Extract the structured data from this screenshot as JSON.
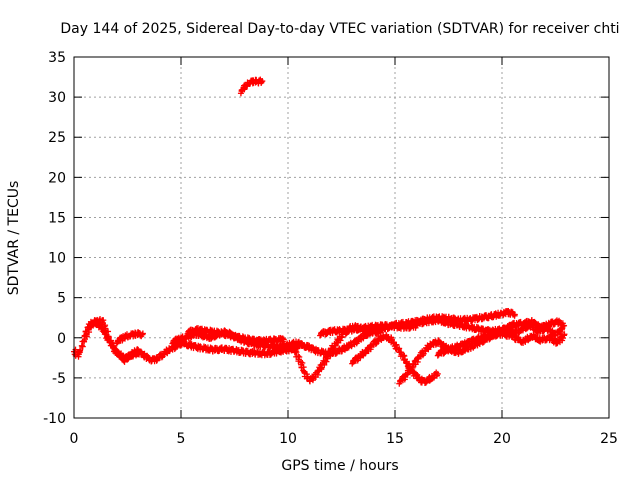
{
  "chart_data": {
    "type": "scatter",
    "title": "Day 144 of 2025, Sidereal Day-to-day VTEC variation (SDTVAR) for receiver chti",
    "xlabel": "GPS time / hours",
    "ylabel": "SDTVAR / TECUs",
    "xlim": [
      0,
      25
    ],
    "ylim": [
      -10,
      35
    ],
    "xticks": [
      0,
      5,
      10,
      15,
      20,
      25
    ],
    "yticks": [
      -10,
      -5,
      0,
      5,
      10,
      15,
      20,
      25,
      30,
      35
    ],
    "grid": true,
    "marker": "plus",
    "color": "#ff0000",
    "series": [
      {
        "name": "s1",
        "x": [
          0.0,
          0.1,
          0.2,
          0.3,
          0.45,
          0.6,
          0.75,
          0.9,
          1.05,
          1.2,
          1.4,
          1.6,
          1.8,
          2.0,
          2.3,
          2.6,
          3.0
        ],
        "y": [
          -1.5,
          -2.0,
          -2.2,
          -1.6,
          -0.5,
          0.5,
          1.3,
          1.8,
          2.0,
          1.5,
          0.8,
          -0.2,
          -1.0,
          -1.8,
          -2.5,
          -2.3,
          -1.9
        ]
      },
      {
        "name": "s2",
        "x": [
          0.5,
          0.7,
          0.9,
          1.1,
          1.3,
          1.5,
          1.7,
          1.9,
          2.1,
          2.4,
          2.7,
          3.0
        ],
        "y": [
          0.5,
          1.5,
          2.0,
          1.9,
          2.2,
          1.0,
          -0.5,
          -1.5,
          -2.2,
          -2.8,
          -2.0,
          -1.5
        ]
      },
      {
        "name": "s3",
        "x": [
          2.0,
          2.3,
          2.6,
          2.9,
          3.2
        ],
        "y": [
          -0.5,
          0.0,
          0.3,
          0.5,
          0.4
        ]
      },
      {
        "name": "s4",
        "x": [
          3.0,
          3.3,
          3.6,
          3.9,
          4.2,
          4.5,
          4.8,
          5.1
        ],
        "y": [
          -1.8,
          -2.2,
          -2.8,
          -2.6,
          -2.0,
          -1.4,
          -1.0,
          -0.6
        ]
      },
      {
        "name": "s5",
        "x": [
          4.6,
          4.9,
          5.2,
          5.5,
          5.8,
          6.1,
          6.4,
          6.7,
          7.0,
          7.3,
          7.6,
          8.0,
          8.5,
          9.0,
          9.5,
          10.0,
          10.5
        ],
        "y": [
          -0.5,
          -0.2,
          0.0,
          0.3,
          0.5,
          0.2,
          0.0,
          0.4,
          0.7,
          0.5,
          0.0,
          -0.5,
          -0.8,
          -1.0,
          -1.1,
          -0.9,
          -0.6
        ]
      },
      {
        "name": "s6",
        "x": [
          5.0,
          5.5,
          6.0,
          6.5,
          7.0,
          7.5,
          8.0,
          8.5,
          9.0,
          9.5,
          10.0,
          10.5
        ],
        "y": [
          -0.6,
          -1.0,
          -1.3,
          -1.5,
          -1.4,
          -1.6,
          -1.8,
          -1.9,
          -2.0,
          -1.7,
          -1.5,
          -1.0
        ]
      },
      {
        "name": "s7",
        "x": [
          5.3,
          5.8,
          6.3,
          6.8,
          7.3,
          7.8,
          8.3,
          8.8,
          9.3,
          9.8
        ],
        "y": [
          0.7,
          1.0,
          0.8,
          0.6,
          0.3,
          0.0,
          -0.3,
          -0.4,
          -0.3,
          -0.2
        ]
      },
      {
        "name": "s8",
        "x": [
          7.8,
          8.0,
          8.2,
          8.4,
          8.6,
          8.8
        ],
        "y": [
          30.7,
          31.3,
          31.8,
          32.0,
          31.9,
          32.0
        ]
      },
      {
        "name": "s9",
        "x": [
          10.2,
          10.4,
          10.6,
          10.8,
          11.0,
          11.2,
          11.4,
          11.6,
          11.8,
          12.0,
          12.3,
          12.6,
          12.9,
          13.2,
          13.5,
          13.8,
          14.1,
          14.4
        ],
        "y": [
          -1.0,
          -2.0,
          -3.2,
          -4.5,
          -5.3,
          -5.0,
          -4.2,
          -3.5,
          -2.6,
          -1.6,
          -0.5,
          0.5,
          1.2,
          1.4,
          1.0,
          0.8,
          0.7,
          0.9
        ]
      },
      {
        "name": "s10",
        "x": [
          10.5,
          11.0,
          11.5,
          12.0,
          12.5,
          13.0,
          13.5,
          14.0,
          14.5,
          15.0,
          15.5,
          16.0,
          16.5,
          17.0,
          17.5,
          18.0,
          18.5,
          19.0,
          19.5,
          20.0,
          20.3,
          20.6
        ],
        "y": [
          -0.8,
          -1.2,
          -1.8,
          -2.0,
          -1.5,
          -0.8,
          0.2,
          0.8,
          1.2,
          1.6,
          1.8,
          2.0,
          2.3,
          2.5,
          2.4,
          2.2,
          2.3,
          2.5,
          2.7,
          3.0,
          3.2,
          2.9
        ]
      },
      {
        "name": "s11",
        "x": [
          11.5,
          12.0,
          12.5,
          13.0,
          13.5,
          14.0,
          14.5,
          15.0,
          15.5,
          16.0
        ],
        "y": [
          0.5,
          0.8,
          0.9,
          1.0,
          1.2,
          1.4,
          1.5,
          1.4,
          1.3,
          1.5
        ]
      },
      {
        "name": "s12",
        "x": [
          13.0,
          13.3,
          13.6,
          13.9,
          14.2,
          14.5,
          14.8,
          15.1,
          15.4,
          15.7,
          16.0,
          16.3,
          16.6,
          17.0
        ],
        "y": [
          -3.0,
          -2.5,
          -1.8,
          -1.0,
          -0.3,
          0.2,
          -0.2,
          -1.2,
          -2.5,
          -3.8,
          -4.8,
          -5.5,
          -5.2,
          -4.5
        ]
      },
      {
        "name": "s13",
        "x": [
          15.2,
          15.5,
          15.8,
          16.1,
          16.4,
          16.7,
          17.0,
          17.3,
          17.6,
          18.0,
          18.5,
          19.0,
          19.5,
          20.0,
          20.5
        ],
        "y": [
          -5.5,
          -4.8,
          -3.6,
          -2.5,
          -1.6,
          -0.8,
          -0.5,
          -1.0,
          -1.6,
          -1.8,
          -1.2,
          -0.5,
          0.2,
          0.8,
          1.0
        ]
      },
      {
        "name": "s14",
        "x": [
          16.0,
          16.5,
          17.0,
          17.5,
          18.0,
          18.5,
          19.0,
          19.5,
          20.0,
          20.5,
          21.0
        ],
        "y": [
          1.8,
          2.0,
          2.2,
          1.8,
          1.6,
          1.3,
          1.0,
          0.8,
          1.0,
          1.6,
          1.8
        ]
      },
      {
        "name": "s15",
        "x": [
          17.0,
          17.5,
          18.0,
          18.5,
          19.0,
          19.5,
          20.0,
          20.5
        ],
        "y": [
          -2.0,
          -1.5,
          -1.0,
          -0.5,
          0.0,
          0.3,
          0.5,
          0.2
        ]
      },
      {
        "name": "s16",
        "x": [
          20.5,
          20.9,
          21.3,
          21.7,
          22.1,
          22.5,
          22.8
        ],
        "y": [
          0.5,
          1.0,
          1.5,
          0.8,
          1.2,
          0.4,
          1.0
        ]
      },
      {
        "name": "s17",
        "x": [
          20.6,
          21.0,
          21.4,
          21.8,
          22.2,
          22.6,
          22.9
        ],
        "y": [
          0.0,
          -0.5,
          0.2,
          -0.3,
          0.0,
          -0.6,
          0.3
        ]
      },
      {
        "name": "s18",
        "x": [
          21.0,
          21.4,
          21.8,
          22.2,
          22.6,
          22.9
        ],
        "y": [
          1.8,
          2.0,
          1.3,
          1.7,
          2.0,
          1.5
        ]
      }
    ]
  }
}
